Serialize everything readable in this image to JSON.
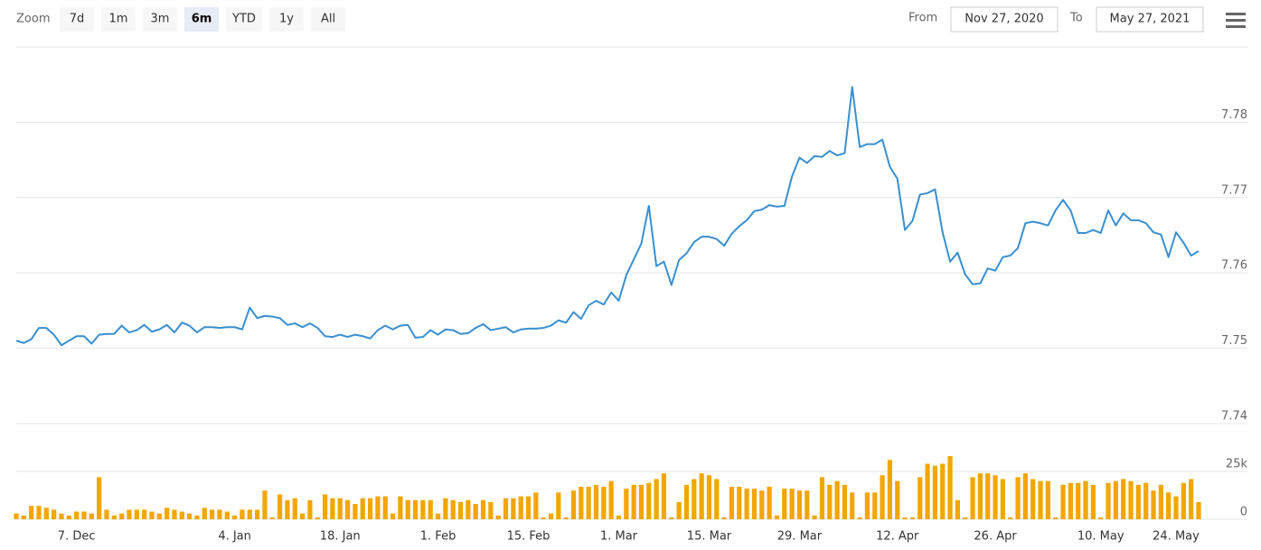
{
  "toolbar": {
    "zoom_label": "Zoom",
    "buttons": [
      "7d",
      "1m",
      "3m",
      "6m",
      "YTD",
      "1y",
      "All"
    ],
    "selected_index": 3,
    "from_label": "From",
    "from_date": "Nov 27, 2020",
    "to_label": "To",
    "to_date": "May 27, 2021"
  },
  "chart_data": [
    {
      "type": "line",
      "color": "#3a8fd0",
      "ylim": [
        7.74,
        7.79
      ],
      "yticks": [
        7.74,
        7.75,
        7.76,
        7.77,
        7.78
      ],
      "grid": true,
      "values": [
        7.751,
        7.7507,
        7.7512,
        7.7527,
        7.7527,
        7.7518,
        7.7504,
        7.751,
        7.7516,
        7.7516,
        7.7506,
        7.7518,
        7.7519,
        7.7519,
        7.753,
        7.7521,
        7.7524,
        7.7531,
        7.7522,
        7.7525,
        7.7531,
        7.7521,
        7.7534,
        7.753,
        7.7521,
        7.7528,
        7.7528,
        7.7527,
        7.7528,
        7.7528,
        7.7525,
        7.7554,
        7.754,
        7.7543,
        7.7542,
        7.754,
        7.7531,
        7.7533,
        7.7528,
        7.7533,
        7.7527,
        7.7516,
        7.7515,
        7.7518,
        7.7515,
        7.7518,
        7.7516,
        7.7513,
        7.7524,
        7.753,
        7.7525,
        7.753,
        7.7531,
        7.7514,
        7.7515,
        7.7524,
        7.7518,
        7.7525,
        7.7524,
        7.7519,
        7.752,
        7.7527,
        7.7532,
        7.7524,
        7.7526,
        7.7528,
        7.7521,
        7.7525,
        7.7526,
        7.7526,
        7.7527,
        7.753,
        7.7537,
        7.7534,
        7.7548,
        7.7539,
        7.7557,
        7.7563,
        7.7558,
        7.7574,
        7.7563,
        7.7597,
        7.7618,
        7.7639,
        7.7689,
        7.7609,
        7.7615,
        7.7584,
        7.7617,
        7.7626,
        7.7641,
        7.7648,
        7.7648,
        7.7645,
        7.7636,
        7.7652,
        7.7662,
        7.767,
        7.7682,
        7.7684,
        7.769,
        7.7688,
        7.7689,
        7.7728,
        7.7753,
        7.7746,
        7.7755,
        7.7754,
        7.7762,
        7.7756,
        7.7759,
        7.7847,
        7.7767,
        7.7771,
        7.7771,
        7.7777,
        7.7741,
        7.7725,
        7.7657,
        7.7669,
        7.7704,
        7.7706,
        7.7711,
        7.7654,
        7.7615,
        7.7627,
        7.7598,
        7.7585,
        7.7586,
        7.7606,
        7.7603,
        7.7621,
        7.7623,
        7.7633,
        7.7666,
        7.7668,
        7.7666,
        7.7663,
        7.7683,
        7.7697,
        7.7683,
        7.7653,
        7.7653,
        7.7657,
        7.7653,
        7.7683,
        7.7663,
        7.7679,
        7.767,
        7.767,
        7.7666,
        7.7654,
        7.7651,
        7.7621,
        7.7654,
        7.764,
        7.7623,
        7.7629
      ]
    },
    {
      "type": "bar",
      "color": "#f2a600",
      "ylim": [
        0,
        50000
      ],
      "yticks": [
        0,
        {
          "value": 25000,
          "label": "25k"
        }
      ],
      "grid": true,
      "categories": [
        null,
        null,
        null,
        null,
        null,
        null,
        null,
        null,
        "7. Dec",
        null,
        null,
        null,
        null,
        null,
        null,
        null,
        null,
        null,
        null,
        null,
        null,
        null,
        null,
        null,
        null,
        null,
        null,
        null,
        null,
        "4. Jan",
        null,
        null,
        null,
        null,
        null,
        null,
        null,
        null,
        null,
        null,
        null,
        null,
        null,
        "18. Jan",
        null,
        null,
        null,
        null,
        null,
        null,
        null,
        null,
        null,
        null,
        null,
        null,
        "1. Feb",
        null,
        null,
        null,
        null,
        null,
        null,
        null,
        null,
        null,
        null,
        null,
        "15. Feb",
        null,
        null,
        null,
        null,
        null,
        null,
        null,
        null,
        null,
        null,
        null,
        "1. Mar",
        null,
        null,
        null,
        null,
        null,
        null,
        null,
        null,
        null,
        null,
        null,
        "15. Mar",
        null,
        null,
        null,
        null,
        null,
        null,
        null,
        null,
        null,
        null,
        null,
        "29. Mar",
        null,
        null,
        null,
        null,
        null,
        null,
        null,
        null,
        null,
        null,
        null,
        null,
        "12. Apr",
        null,
        null,
        null,
        null,
        null,
        null,
        null,
        null,
        null,
        null,
        null,
        null,
        "26. Apr",
        null,
        null,
        null,
        null,
        null,
        null,
        null,
        null,
        null,
        null,
        null,
        null,
        null,
        "10. May",
        null,
        null,
        null,
        null,
        null,
        null,
        null,
        null,
        null,
        "24. May",
        null,
        null,
        null
      ],
      "values": [
        3000,
        2000,
        7000,
        7000,
        6000,
        5000,
        3000,
        2000,
        4000,
        4000,
        3000,
        22000,
        5000,
        2000,
        3000,
        5000,
        5000,
        5000,
        4000,
        3000,
        6000,
        5000,
        4000,
        3000,
        2000,
        6000,
        5000,
        5000,
        4000,
        2000,
        5000,
        5000,
        5000,
        15000,
        1000,
        13000,
        10000,
        11000,
        3000,
        10000,
        1000,
        13000,
        11000,
        11000,
        10000,
        8000,
        11000,
        11000,
        12000,
        12000,
        3000,
        12000,
        10000,
        10000,
        10000,
        10000,
        3000,
        11000,
        10000,
        9000,
        10000,
        8000,
        10000,
        9000,
        2000,
        11000,
        11000,
        12000,
        12000,
        14000,
        1000,
        3000,
        14000,
        1000,
        15000,
        17000,
        17000,
        18000,
        17000,
        20000,
        2000,
        16000,
        18000,
        18000,
        19000,
        21000,
        24000,
        1000,
        9000,
        18000,
        21000,
        24000,
        23000,
        21000,
        1000,
        17000,
        17000,
        16000,
        16000,
        15000,
        17000,
        2000,
        16000,
        16000,
        15000,
        15000,
        2000,
        22000,
        18000,
        20000,
        18000,
        14000,
        1000,
        14000,
        14000,
        23000,
        31000,
        20000,
        1000,
        1000,
        22000,
        29000,
        28000,
        29000,
        33000,
        10000,
        1000,
        22000,
        24000,
        24000,
        23000,
        21000,
        1000,
        22000,
        24000,
        21000,
        20000,
        20000,
        1000,
        18000,
        19000,
        19000,
        20000,
        18000,
        1000,
        19000,
        20000,
        21000,
        20000,
        18000,
        19000,
        15000,
        18000,
        14000,
        12000,
        19000,
        21000,
        9000
      ]
    }
  ]
}
